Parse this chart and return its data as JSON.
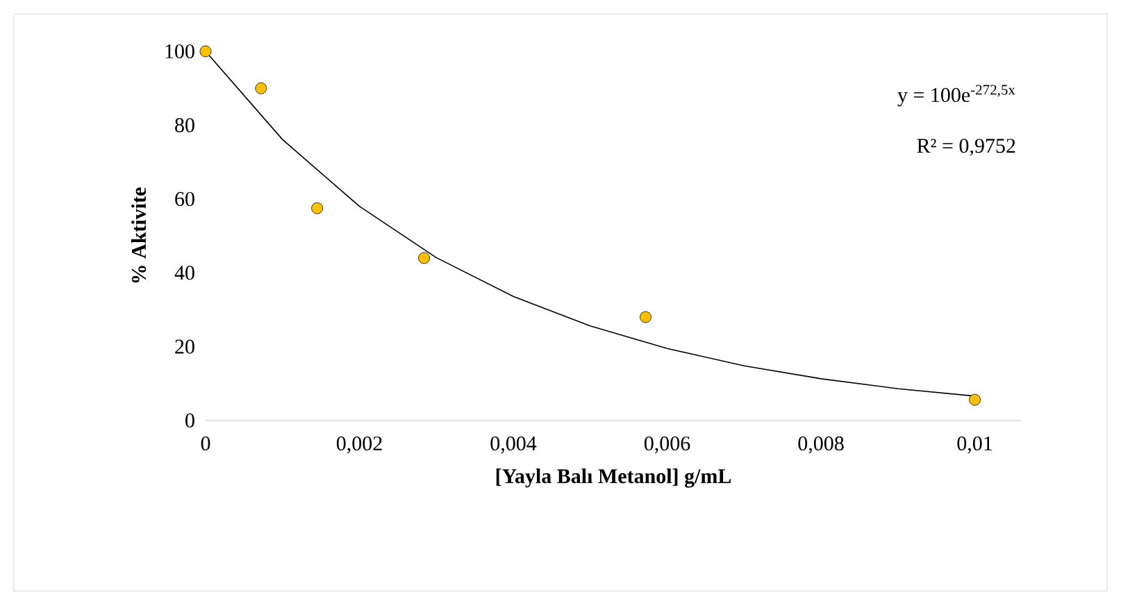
{
  "chart_data": {
    "type": "scatter",
    "xlabel": "[Yayla Balı Metanol] g/mL",
    "ylabel": "% Aktivite",
    "annotations": [
      "y = 100e$^{-272,5x}$",
      "R² = 0,9752"
    ],
    "series": [
      {
        "color": "#ffc000",
        "marker": "circle",
        "x": [
          0,
          0.00072,
          0.00145,
          0.00284,
          0.00572,
          0.01
        ],
        "values": [
          100,
          90,
          57.5,
          44,
          28,
          5.6
        ]
      },
      {
        "type": "line",
        "color": "#000000",
        "marker": "none",
        "x": [
          0,
          0.001,
          0.002,
          0.003,
          0.004,
          0.005,
          0.006,
          0.007,
          0.008,
          0.009,
          0.01
        ],
        "values": [
          100,
          76.1,
          58,
          44.1,
          33.6,
          25.6,
          19.5,
          14.8,
          11.3,
          8.6,
          6.6
        ]
      }
    ],
    "xlim": [
      0,
      0.0106
    ],
    "ylim": [
      0,
      100
    ],
    "xticks": [
      0,
      {
        "value": 0.002,
        "label": "0,002"
      },
      {
        "value": 0.004,
        "label": "0,004"
      },
      {
        "value": 0.006,
        "label": "0,006"
      },
      {
        "value": 0.008,
        "label": "0,008"
      },
      {
        "value": 0.01,
        "label": "0,01"
      }
    ],
    "yticks": [
      0,
      20,
      40,
      60,
      80,
      100
    ],
    "grid": false
  }
}
